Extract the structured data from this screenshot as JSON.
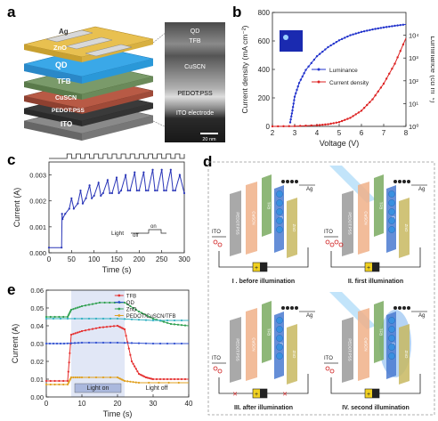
{
  "panel_labels": [
    "a",
    "b",
    "c",
    "d",
    "e"
  ],
  "panel_a": {
    "layers": [
      "Ag",
      "ZnO",
      "QD",
      "TFB",
      "CuSCN",
      "PEDOT:PSS",
      "ITO"
    ],
    "tem_labels": [
      "QD",
      "TFB",
      "CuSCN",
      "PEDOT:PSS",
      "ITO electrode"
    ],
    "scale_bar": "20 nm"
  },
  "panel_d": {
    "layer_labels": [
      "PEDOT:PSS",
      "CuSCN",
      "TFB",
      "QD",
      "ZnO"
    ],
    "ito": "ITO",
    "ag": "Ag",
    "battery_sign": "+",
    "captions": [
      "I . before illumination",
      "II. first illumination",
      "III. after illumination",
      "IV. second illumination"
    ]
  },
  "chart_data": [
    {
      "panel": "b",
      "type": "line",
      "xlabel": "Voltage (V)",
      "ylabel": "Current density (mA cm⁻²)",
      "y2label": "Luminance (cd m⁻²)",
      "xlim": [
        2,
        8
      ],
      "ylim": [
        0,
        800
      ],
      "y2lim": [
        1,
        100000
      ],
      "y2scale": "log",
      "xticks": [
        "2",
        "3",
        "4",
        "5",
        "6",
        "7",
        "8"
      ],
      "yticks": [
        "0",
        "200",
        "400",
        "600",
        "800"
      ],
      "y2ticks": [
        "10⁰",
        "10¹",
        "10²",
        "10³",
        "10⁴"
      ],
      "legend": [
        "Luminance",
        "Current density"
      ],
      "series": [
        {
          "name": "Luminance",
          "color": "#2233cc",
          "axis": "right",
          "x": [
            2.8,
            2.9,
            3.0,
            3.2,
            3.5,
            4.0,
            4.5,
            5.0,
            5.5,
            6.0,
            6.5,
            7.0,
            7.5,
            8.0
          ],
          "y": [
            1.5,
            5,
            20,
            80,
            300,
            1200,
            3000,
            6000,
            10000,
            14000,
            18000,
            22000,
            26000,
            30000
          ]
        },
        {
          "name": "Current density",
          "color": "#dd2222",
          "axis": "left",
          "x": [
            2.0,
            3.0,
            4.0,
            4.5,
            5.0,
            5.5,
            6.0,
            6.5,
            7.0,
            7.5,
            8.0
          ],
          "y": [
            0,
            2,
            8,
            15,
            30,
            60,
            110,
            190,
            300,
            440,
            620
          ]
        }
      ]
    },
    {
      "panel": "c",
      "type": "line",
      "xlabel": "Time (s)",
      "ylabel": "Current (A)",
      "xlim": [
        0,
        300
      ],
      "ylim": [
        0,
        0.0035
      ],
      "xticks": [
        "0",
        "50",
        "100",
        "150",
        "200",
        "250",
        "300"
      ],
      "yticks": [
        "0.000",
        "0.001",
        "0.002",
        "0.003"
      ],
      "legend_labels": [
        "Light",
        "off",
        "on"
      ],
      "series": [
        {
          "name": "Current",
          "color": "#2a36b8",
          "x": [
            0,
            28,
            29,
            30,
            36,
            45,
            50,
            55,
            64,
            70,
            75,
            82,
            90,
            95,
            100,
            110,
            115,
            120,
            130,
            135,
            140,
            150,
            155,
            160,
            170,
            175,
            180,
            190,
            195,
            200,
            210,
            215,
            220,
            230,
            235,
            240,
            250,
            255,
            260,
            270,
            275,
            280,
            290,
            300
          ],
          "y": [
            0.0002,
            0.0002,
            0.0015,
            0.0013,
            0.0015,
            0.0017,
            0.0021,
            0.0017,
            0.0019,
            0.0024,
            0.0019,
            0.0021,
            0.0026,
            0.0021,
            0.0022,
            0.0027,
            0.0022,
            0.0023,
            0.0028,
            0.0023,
            0.0023,
            0.0029,
            0.0023,
            0.0024,
            0.003,
            0.0024,
            0.0024,
            0.0031,
            0.0024,
            0.0024,
            0.0031,
            0.0024,
            0.0024,
            0.0032,
            0.0024,
            0.0024,
            0.0032,
            0.0024,
            0.0024,
            0.0032,
            0.0024,
            0.0024,
            0.003,
            0.0023
          ]
        }
      ]
    },
    {
      "panel": "e",
      "type": "line",
      "xlabel": "Time (s)",
      "ylabel": "Current (A)",
      "xlim": [
        0,
        40
      ],
      "ylim": [
        0,
        0.06
      ],
      "xticks": [
        "0",
        "10",
        "20",
        "30",
        "40"
      ],
      "yticks": [
        "0.00",
        "0.01",
        "0.02",
        "0.03",
        "0.04",
        "0.05",
        "0.06"
      ],
      "annotations": [
        "Light on",
        "Light off"
      ],
      "series": [
        {
          "name": "TFB",
          "color": "#e53030",
          "x": [
            0,
            6,
            7,
            10,
            15,
            20,
            22,
            24,
            26,
            28,
            30,
            35,
            40
          ],
          "y": [
            0.009,
            0.009,
            0.035,
            0.037,
            0.039,
            0.04,
            0.038,
            0.02,
            0.013,
            0.011,
            0.01,
            0.01,
            0.01
          ]
        },
        {
          "name": "QD",
          "color": "#3050d0",
          "x": [
            0,
            5,
            10,
            20,
            30,
            40
          ],
          "y": [
            0.03,
            0.03,
            0.0305,
            0.0305,
            0.03,
            0.03
          ]
        },
        {
          "name": "ZnO",
          "color": "#30a050",
          "x": [
            0,
            6,
            7,
            10,
            15,
            22,
            26,
            30,
            35,
            40
          ],
          "y": [
            0.045,
            0.045,
            0.049,
            0.051,
            0.053,
            0.053,
            0.048,
            0.044,
            0.041,
            0.04
          ]
        },
        {
          "name": "PEDOT/CuSCN/TFB",
          "color": "#e0a020",
          "x": [
            0,
            6,
            7,
            10,
            20,
            22,
            26,
            40
          ],
          "y": [
            0.007,
            0.007,
            0.011,
            0.011,
            0.011,
            0.009,
            0.008,
            0.008
          ]
        },
        {
          "name": "",
          "color": "#30b0c0",
          "x": [
            0,
            10,
            20,
            30,
            40
          ],
          "y": [
            0.044,
            0.044,
            0.044,
            0.043,
            0.043
          ]
        }
      ]
    }
  ]
}
